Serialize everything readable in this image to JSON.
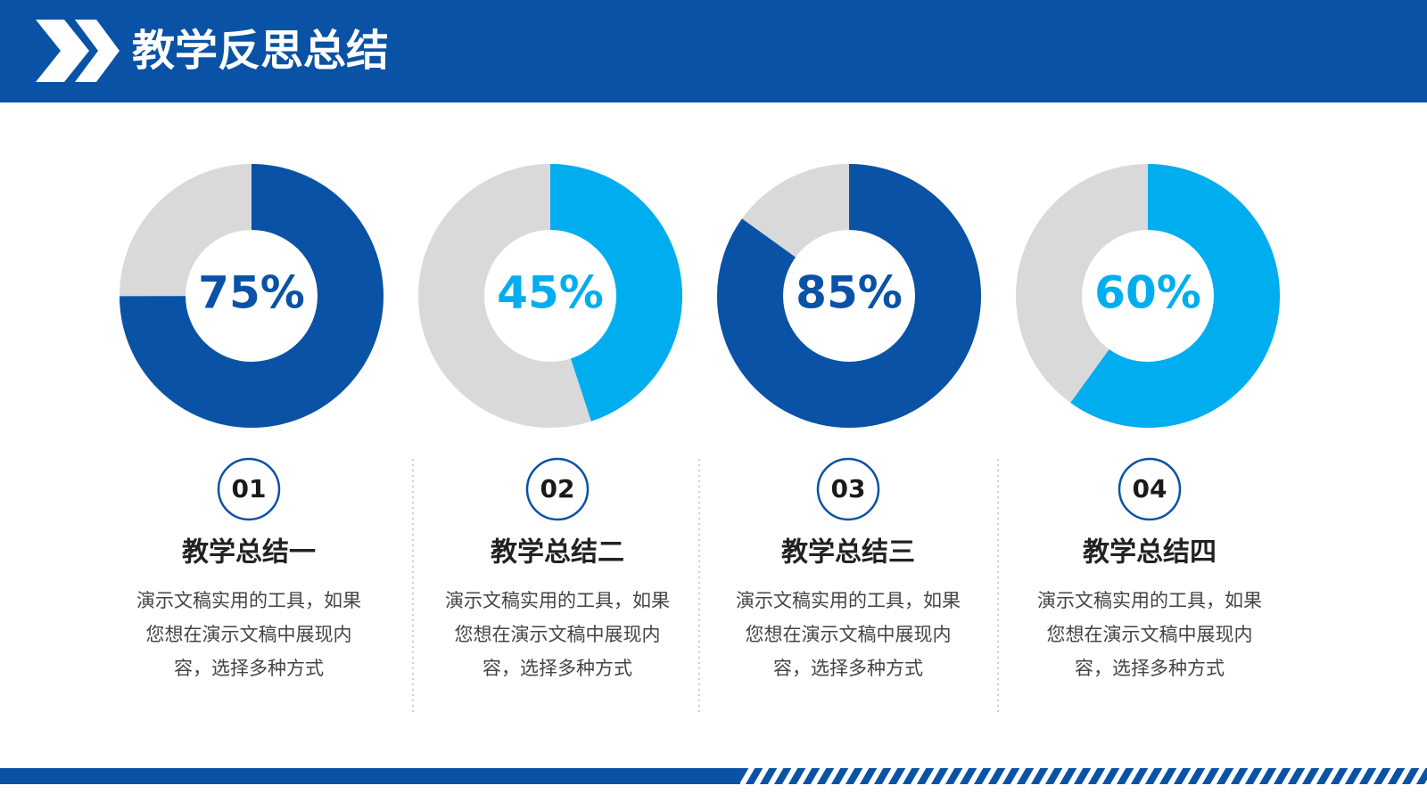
{
  "title": "教学反思总结",
  "chart_data": [
    {
      "type": "pie",
      "values": [
        75
      ],
      "value_labels": [
        "75%"
      ],
      "color": "#0a52a5"
    },
    {
      "type": "pie",
      "values": [
        45
      ],
      "value_labels": [
        "45%"
      ],
      "color": "#00aeef"
    },
    {
      "type": "pie",
      "values": [
        85
      ],
      "value_labels": [
        "85%"
      ],
      "color": "#0a52a5"
    },
    {
      "type": "pie",
      "values": [
        60
      ],
      "value_labels": [
        "60%"
      ],
      "color": "#00aeef"
    }
  ],
  "items": [
    {
      "number": "01",
      "heading": "教学总结一",
      "lines": [
        "演示文稿实用的工具，如果",
        "您想在演示文稿中展现内",
        "容，选择多种方式"
      ]
    },
    {
      "number": "02",
      "heading": "教学总结二",
      "lines": [
        "演示文稿实用的工具，如果",
        "您想在演示文稿中展现内",
        "容，选择多种方式"
      ]
    },
    {
      "number": "03",
      "heading": "教学总结三",
      "lines": [
        "演示文稿实用的工具，如果",
        "您想在演示文稿中展现内",
        "容，选择多种方式"
      ]
    },
    {
      "number": "04",
      "heading": "教学总结四",
      "lines": [
        "演示文稿实用的工具，如果",
        "您想在演示文稿中展现内",
        "容，选择多种方式"
      ]
    }
  ]
}
